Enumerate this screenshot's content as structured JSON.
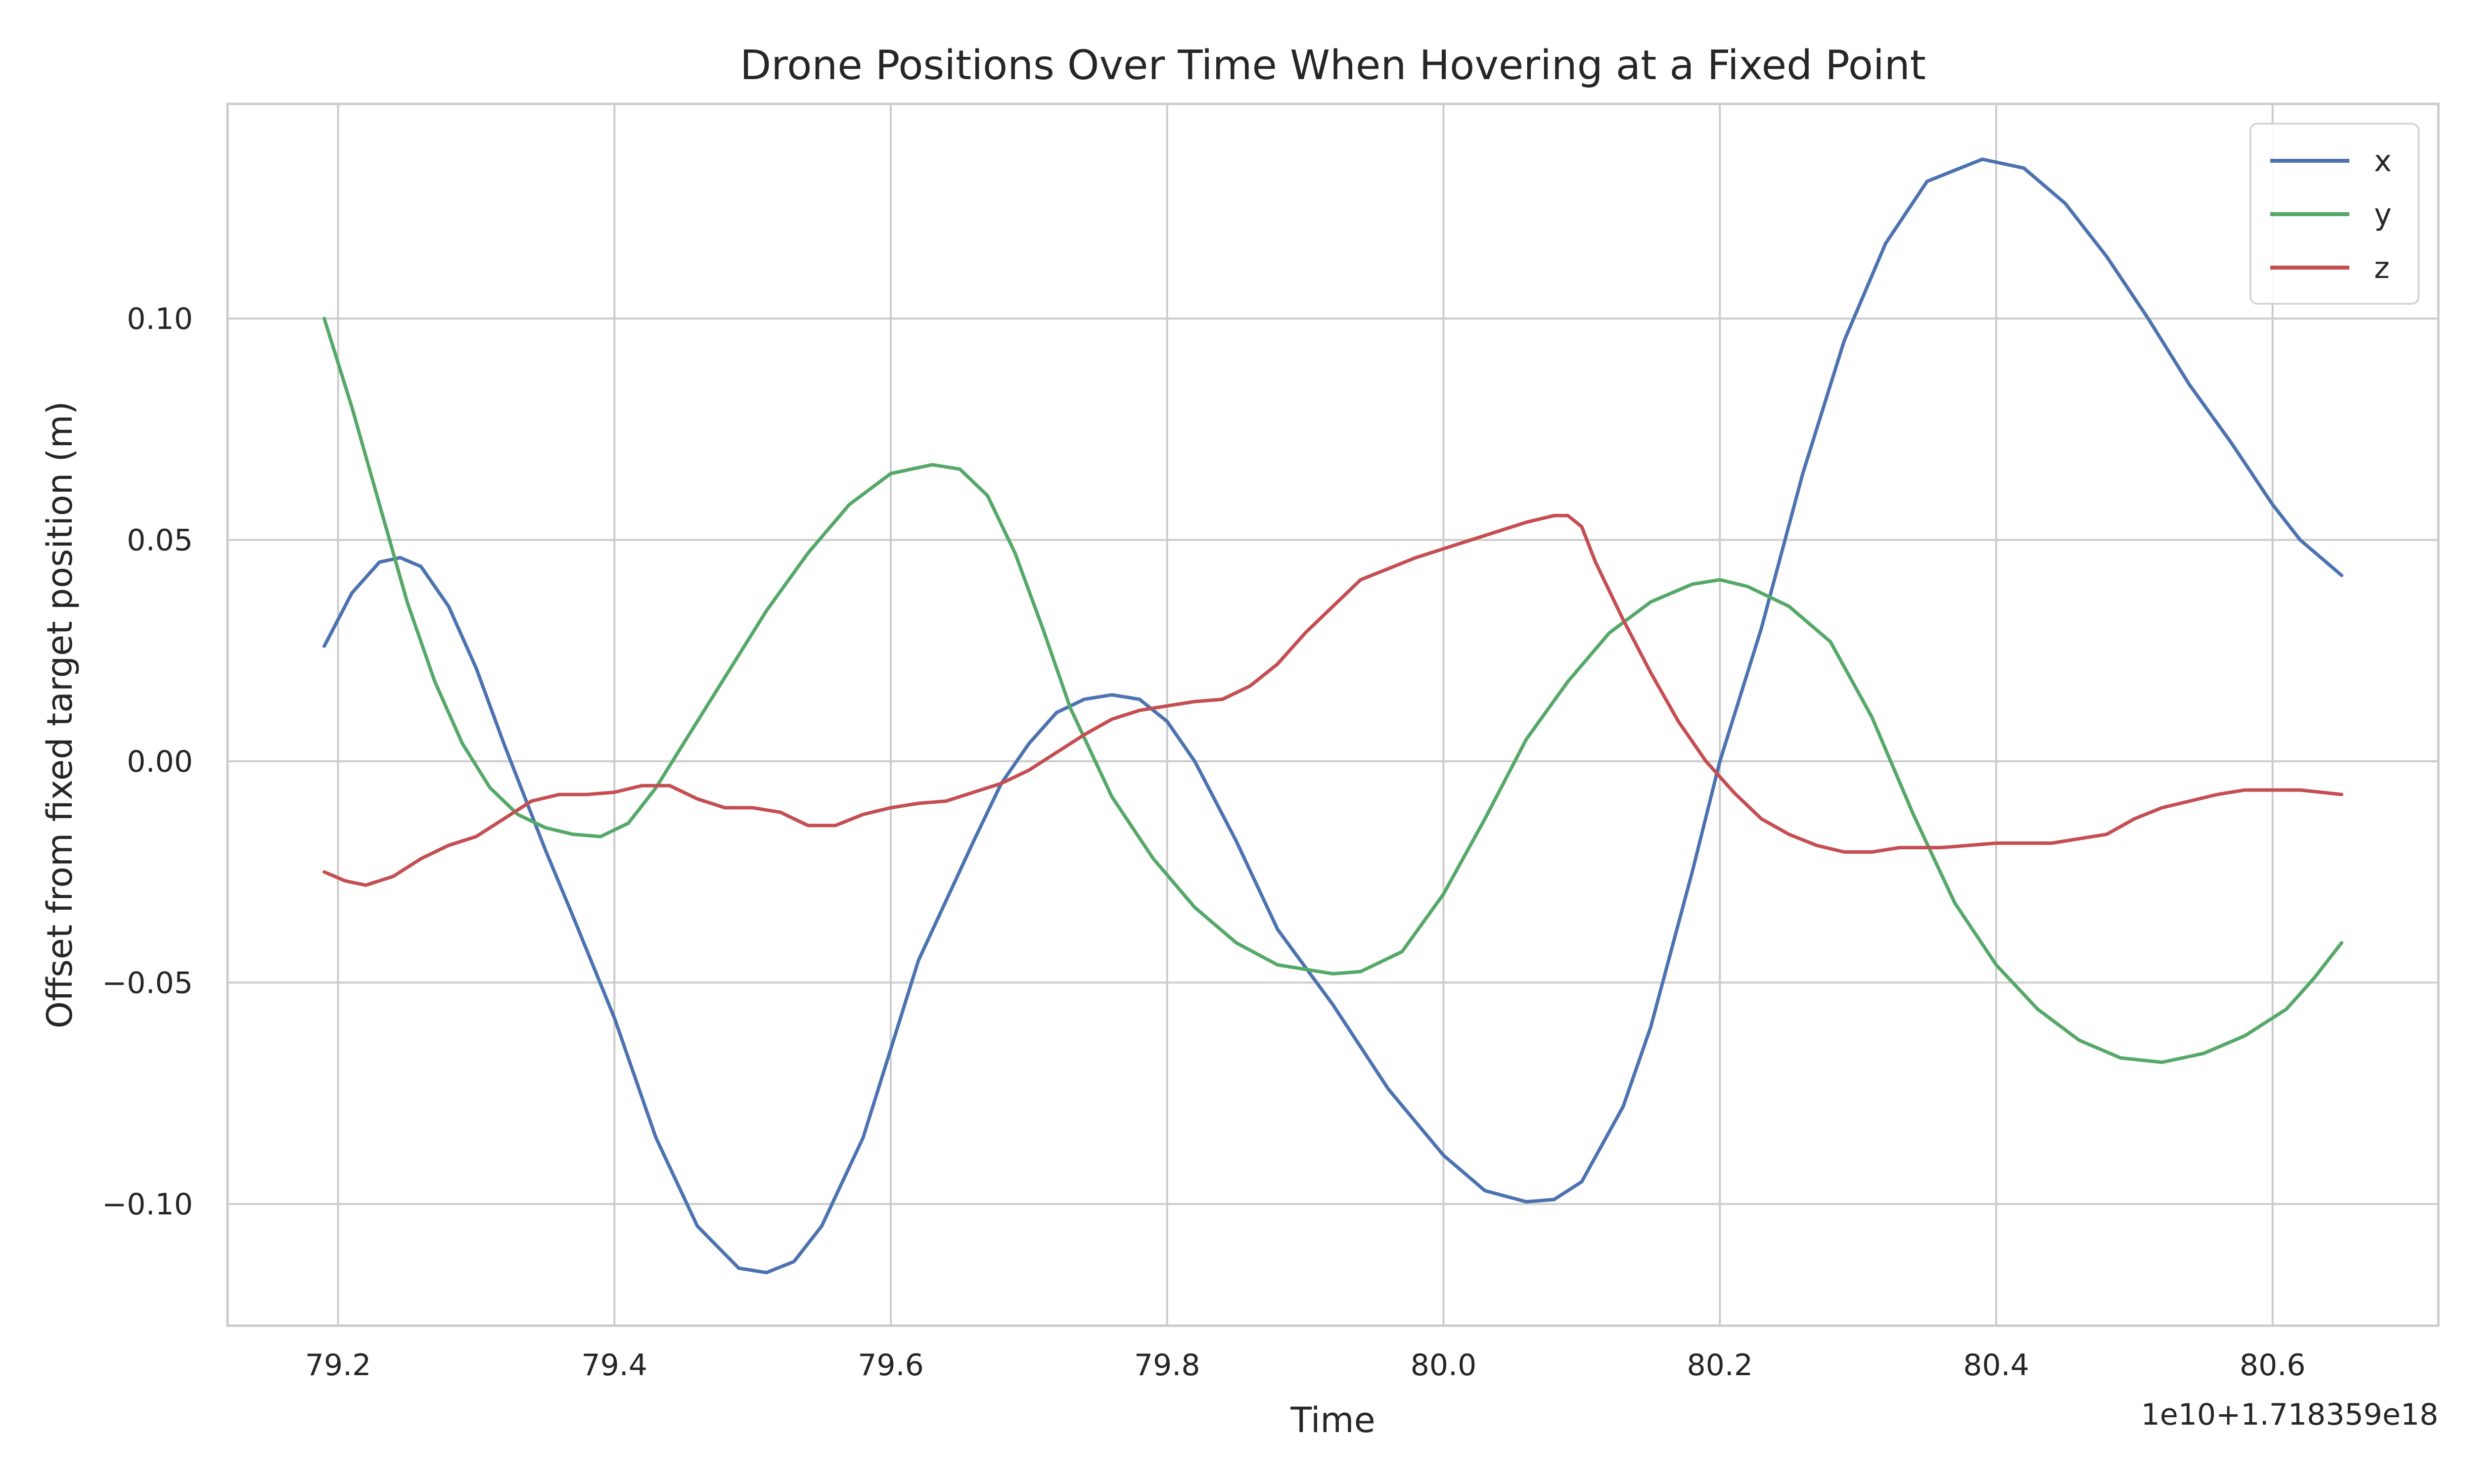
{
  "chart_data": {
    "type": "line",
    "title": "Drone Positions Over Time When Hovering at a Fixed Point",
    "xlabel": "Time",
    "ylabel": "Offset from fixed target position (m)",
    "x_offset_label": "1e10+1.718359e18",
    "xlim": [
      79.12,
      80.72
    ],
    "ylim": [
      -0.1275,
      0.1485
    ],
    "x_ticks": [
      79.2,
      79.4,
      79.6,
      79.8,
      80.0,
      80.2,
      80.4,
      80.6
    ],
    "x_tick_labels": [
      "79.2",
      "79.4",
      "79.6",
      "79.8",
      "80.0",
      "80.2",
      "80.4",
      "80.6"
    ],
    "y_ticks": [
      -0.1,
      -0.05,
      0.0,
      0.05,
      0.1
    ],
    "y_tick_labels": [
      "−0.10",
      "−0.05",
      "0.00",
      "0.05",
      "0.10"
    ],
    "grid": true,
    "legend_position": "top-right",
    "series": [
      {
        "name": "x",
        "color": "#4c72b0",
        "points": [
          [
            79.19,
            0.026
          ],
          [
            79.21,
            0.038
          ],
          [
            79.23,
            0.045
          ],
          [
            79.245,
            0.046
          ],
          [
            79.26,
            0.044
          ],
          [
            79.28,
            0.035
          ],
          [
            79.3,
            0.021
          ],
          [
            79.32,
            0.004
          ],
          [
            79.34,
            -0.012
          ],
          [
            79.35,
            -0.02
          ],
          [
            79.37,
            -0.035
          ],
          [
            79.4,
            -0.058
          ],
          [
            79.43,
            -0.085
          ],
          [
            79.46,
            -0.105
          ],
          [
            79.49,
            -0.1145
          ],
          [
            79.51,
            -0.1155
          ],
          [
            79.53,
            -0.113
          ],
          [
            79.55,
            -0.105
          ],
          [
            79.58,
            -0.085
          ],
          [
            79.62,
            -0.045
          ],
          [
            79.66,
            -0.018
          ],
          [
            79.68,
            -0.005
          ],
          [
            79.7,
            0.004
          ],
          [
            79.72,
            0.011
          ],
          [
            79.74,
            0.014
          ],
          [
            79.76,
            0.015
          ],
          [
            79.78,
            0.014
          ],
          [
            79.8,
            0.009
          ],
          [
            79.82,
            0.0
          ],
          [
            79.85,
            -0.018
          ],
          [
            79.88,
            -0.038
          ],
          [
            79.92,
            -0.055
          ],
          [
            79.96,
            -0.074
          ],
          [
            80.0,
            -0.089
          ],
          [
            80.03,
            -0.097
          ],
          [
            80.06,
            -0.0995
          ],
          [
            80.08,
            -0.099
          ],
          [
            80.1,
            -0.095
          ],
          [
            80.13,
            -0.078
          ],
          [
            80.15,
            -0.06
          ],
          [
            80.18,
            -0.025
          ],
          [
            80.2,
            0.0
          ],
          [
            80.23,
            0.03
          ],
          [
            80.26,
            0.065
          ],
          [
            80.29,
            0.095
          ],
          [
            80.32,
            0.117
          ],
          [
            80.35,
            0.131
          ],
          [
            80.39,
            0.136
          ],
          [
            80.42,
            0.134
          ],
          [
            80.45,
            0.126
          ],
          [
            80.48,
            0.114
          ],
          [
            80.51,
            0.1
          ],
          [
            80.54,
            0.085
          ],
          [
            80.57,
            0.072
          ],
          [
            80.6,
            0.058
          ],
          [
            80.62,
            0.05
          ],
          [
            80.65,
            0.042
          ]
        ]
      },
      {
        "name": "y",
        "color": "#55a868",
        "points": [
          [
            79.19,
            0.1
          ],
          [
            79.21,
            0.08
          ],
          [
            79.23,
            0.058
          ],
          [
            79.25,
            0.036
          ],
          [
            79.27,
            0.018
          ],
          [
            79.29,
            0.004
          ],
          [
            79.31,
            -0.006
          ],
          [
            79.33,
            -0.012
          ],
          [
            79.35,
            -0.015
          ],
          [
            79.37,
            -0.0165
          ],
          [
            79.39,
            -0.017
          ],
          [
            79.41,
            -0.014
          ],
          [
            79.43,
            -0.006
          ],
          [
            79.45,
            0.004
          ],
          [
            79.48,
            0.019
          ],
          [
            79.51,
            0.034
          ],
          [
            79.54,
            0.047
          ],
          [
            79.57,
            0.058
          ],
          [
            79.6,
            0.065
          ],
          [
            79.63,
            0.067
          ],
          [
            79.65,
            0.066
          ],
          [
            79.67,
            0.06
          ],
          [
            79.69,
            0.047
          ],
          [
            79.71,
            0.03
          ],
          [
            79.73,
            0.012
          ],
          [
            79.76,
            -0.008
          ],
          [
            79.79,
            -0.022
          ],
          [
            79.82,
            -0.033
          ],
          [
            79.85,
            -0.041
          ],
          [
            79.88,
            -0.046
          ],
          [
            79.92,
            -0.048
          ],
          [
            79.94,
            -0.0475
          ],
          [
            79.97,
            -0.043
          ],
          [
            80.0,
            -0.03
          ],
          [
            80.03,
            -0.013
          ],
          [
            80.06,
            0.005
          ],
          [
            80.09,
            0.018
          ],
          [
            80.12,
            0.029
          ],
          [
            80.15,
            0.036
          ],
          [
            80.18,
            0.04
          ],
          [
            80.2,
            0.041
          ],
          [
            80.22,
            0.0395
          ],
          [
            80.25,
            0.035
          ],
          [
            80.28,
            0.027
          ],
          [
            80.31,
            0.01
          ],
          [
            80.34,
            -0.012
          ],
          [
            80.37,
            -0.032
          ],
          [
            80.4,
            -0.046
          ],
          [
            80.43,
            -0.056
          ],
          [
            80.46,
            -0.063
          ],
          [
            80.49,
            -0.067
          ],
          [
            80.52,
            -0.068
          ],
          [
            80.55,
            -0.066
          ],
          [
            80.58,
            -0.062
          ],
          [
            80.61,
            -0.056
          ],
          [
            80.63,
            -0.049
          ],
          [
            80.65,
            -0.041
          ]
        ]
      },
      {
        "name": "z",
        "color": "#c44e52",
        "points": [
          [
            79.19,
            -0.025
          ],
          [
            79.205,
            -0.027
          ],
          [
            79.22,
            -0.028
          ],
          [
            79.24,
            -0.026
          ],
          [
            79.26,
            -0.022
          ],
          [
            79.28,
            -0.019
          ],
          [
            79.3,
            -0.017
          ],
          [
            79.32,
            -0.013
          ],
          [
            79.34,
            -0.009
          ],
          [
            79.36,
            -0.0075
          ],
          [
            79.38,
            -0.0075
          ],
          [
            79.4,
            -0.007
          ],
          [
            79.42,
            -0.0055
          ],
          [
            79.44,
            -0.0055
          ],
          [
            79.46,
            -0.0085
          ],
          [
            79.48,
            -0.0105
          ],
          [
            79.5,
            -0.0105
          ],
          [
            79.52,
            -0.0115
          ],
          [
            79.54,
            -0.0145
          ],
          [
            79.56,
            -0.0145
          ],
          [
            79.58,
            -0.012
          ],
          [
            79.6,
            -0.0105
          ],
          [
            79.62,
            -0.0095
          ],
          [
            79.64,
            -0.009
          ],
          [
            79.66,
            -0.007
          ],
          [
            79.68,
            -0.005
          ],
          [
            79.7,
            -0.002
          ],
          [
            79.72,
            0.002
          ],
          [
            79.74,
            0.006
          ],
          [
            79.76,
            0.0095
          ],
          [
            79.78,
            0.0115
          ],
          [
            79.8,
            0.0125
          ],
          [
            79.82,
            0.0135
          ],
          [
            79.84,
            0.014
          ],
          [
            79.86,
            0.017
          ],
          [
            79.88,
            0.022
          ],
          [
            79.9,
            0.029
          ],
          [
            79.92,
            0.035
          ],
          [
            79.94,
            0.041
          ],
          [
            79.96,
            0.0435
          ],
          [
            79.98,
            0.046
          ],
          [
            80.0,
            0.048
          ],
          [
            80.02,
            0.05
          ],
          [
            80.04,
            0.052
          ],
          [
            80.06,
            0.054
          ],
          [
            80.08,
            0.0555
          ],
          [
            80.09,
            0.0555
          ],
          [
            80.1,
            0.053
          ],
          [
            80.11,
            0.045
          ],
          [
            80.13,
            0.032
          ],
          [
            80.15,
            0.02
          ],
          [
            80.17,
            0.009
          ],
          [
            80.19,
            0.0
          ],
          [
            80.21,
            -0.007
          ],
          [
            80.23,
            -0.013
          ],
          [
            80.25,
            -0.0165
          ],
          [
            80.27,
            -0.019
          ],
          [
            80.29,
            -0.0205
          ],
          [
            80.31,
            -0.0205
          ],
          [
            80.33,
            -0.0195
          ],
          [
            80.36,
            -0.0195
          ],
          [
            80.4,
            -0.0185
          ],
          [
            80.44,
            -0.0185
          ],
          [
            80.48,
            -0.0165
          ],
          [
            80.5,
            -0.013
          ],
          [
            80.52,
            -0.0105
          ],
          [
            80.54,
            -0.009
          ],
          [
            80.56,
            -0.0075
          ],
          [
            80.58,
            -0.0065
          ],
          [
            80.6,
            -0.0065
          ],
          [
            80.62,
            -0.0065
          ],
          [
            80.65,
            -0.0075
          ]
        ]
      }
    ]
  }
}
